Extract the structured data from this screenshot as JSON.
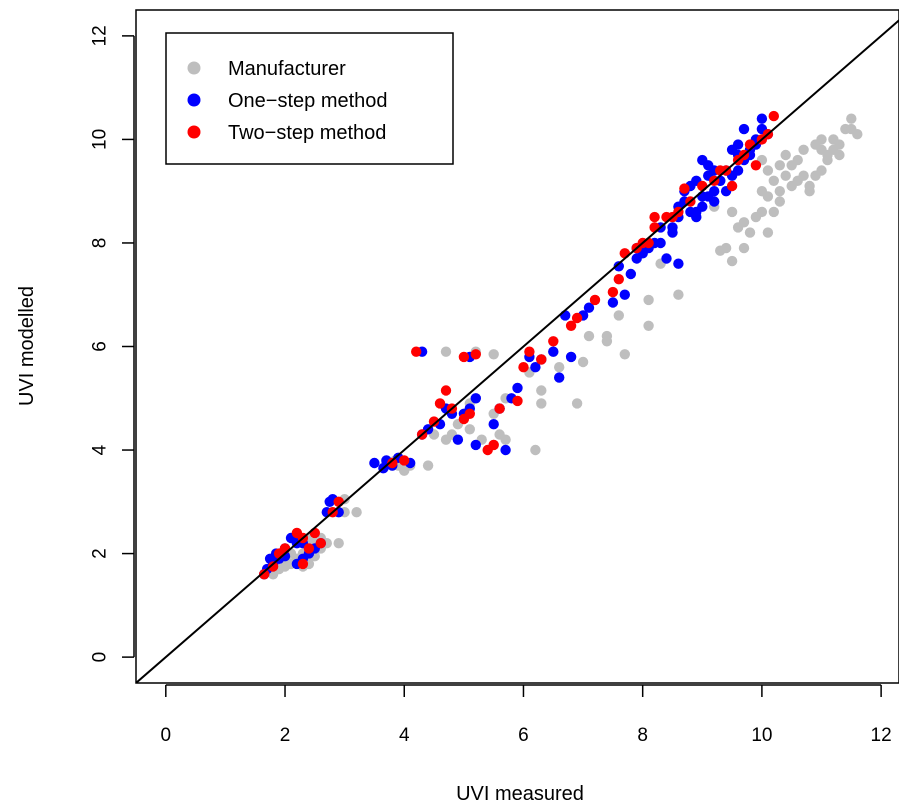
{
  "chart_data": {
    "type": "scatter",
    "xlabel": "UVI measured",
    "ylabel": "UVI modelled",
    "xlim": [
      -0.5,
      12.3
    ],
    "ylim": [
      -0.5,
      12.5
    ],
    "xticks": [
      0,
      2,
      4,
      6,
      8,
      10,
      12
    ],
    "yticks": [
      0,
      2,
      4,
      6,
      8,
      10,
      12
    ],
    "grid": false,
    "legend_position": "top-left",
    "reference_line": "y = x",
    "series": [
      {
        "name": "Manufacturer",
        "color": "#bebebe",
        "points": [
          [
            1.8,
            1.6
          ],
          [
            1.9,
            1.7
          ],
          [
            2.0,
            1.75
          ],
          [
            2.1,
            1.8
          ],
          [
            2.2,
            1.9
          ],
          [
            2.3,
            1.85
          ],
          [
            2.4,
            1.8
          ],
          [
            2.1,
            2.0
          ],
          [
            2.3,
            2.0
          ],
          [
            2.4,
            2.1
          ],
          [
            2.5,
            2.2
          ],
          [
            2.6,
            2.1
          ],
          [
            2.2,
            2.2
          ],
          [
            2.4,
            2.3
          ],
          [
            2.6,
            2.3
          ],
          [
            2.0,
            1.9
          ],
          [
            2.5,
            1.95
          ],
          [
            2.7,
            2.2
          ],
          [
            2.9,
            2.2
          ],
          [
            2.3,
            1.75
          ],
          [
            2.8,
            2.8
          ],
          [
            2.9,
            2.8
          ],
          [
            3.0,
            2.8
          ],
          [
            3.2,
            2.8
          ],
          [
            3.0,
            3.05
          ],
          [
            2.9,
            3.0
          ],
          [
            3.7,
            3.75
          ],
          [
            3.8,
            3.7
          ],
          [
            3.9,
            3.7
          ],
          [
            4.0,
            3.6
          ],
          [
            4.1,
            3.7
          ],
          [
            4.4,
            3.7
          ],
          [
            3.85,
            3.8
          ],
          [
            4.5,
            4.3
          ],
          [
            4.7,
            4.2
          ],
          [
            4.8,
            4.3
          ],
          [
            4.9,
            4.5
          ],
          [
            5.1,
            4.4
          ],
          [
            5.3,
            4.2
          ],
          [
            5.5,
            4.1
          ],
          [
            5.6,
            4.3
          ],
          [
            5.7,
            4.2
          ],
          [
            6.2,
            4.0
          ],
          [
            4.7,
            5.9
          ],
          [
            5.2,
            5.9
          ],
          [
            5.5,
            5.85
          ],
          [
            5.1,
            4.9
          ],
          [
            5.2,
            5.0
          ],
          [
            5.5,
            4.7
          ],
          [
            5.6,
            4.8
          ],
          [
            5.7,
            5.0
          ],
          [
            6.1,
            5.5
          ],
          [
            6.3,
            5.15
          ],
          [
            6.3,
            4.9
          ],
          [
            6.9,
            4.9
          ],
          [
            6.6,
            5.6
          ],
          [
            6.8,
            5.8
          ],
          [
            6.5,
            5.9
          ],
          [
            7.0,
            5.7
          ],
          [
            7.1,
            6.2
          ],
          [
            7.4,
            6.2
          ],
          [
            7.6,
            6.6
          ],
          [
            7.4,
            6.1
          ],
          [
            7.7,
            5.85
          ],
          [
            8.1,
            6.4
          ],
          [
            8.1,
            6.9
          ],
          [
            8.6,
            7.0
          ],
          [
            8.3,
            7.6
          ],
          [
            9.3,
            7.85
          ],
          [
            9.4,
            7.9
          ],
          [
            9.5,
            7.65
          ],
          [
            9.7,
            7.9
          ],
          [
            9.6,
            8.3
          ],
          [
            9.8,
            8.2
          ],
          [
            10.0,
            8.6
          ],
          [
            10.1,
            8.2
          ],
          [
            9.9,
            8.5
          ],
          [
            10.2,
            8.6
          ],
          [
            10.3,
            8.8
          ],
          [
            9.2,
            8.7
          ],
          [
            9.5,
            8.6
          ],
          [
            9.7,
            8.4
          ],
          [
            10.0,
            9.0
          ],
          [
            10.1,
            8.9
          ],
          [
            10.2,
            9.2
          ],
          [
            10.3,
            9.0
          ],
          [
            10.5,
            9.1
          ],
          [
            10.6,
            9.2
          ],
          [
            10.7,
            9.3
          ],
          [
            10.8,
            9.1
          ],
          [
            10.8,
            9.0
          ],
          [
            10.5,
            9.5
          ],
          [
            10.6,
            9.6
          ],
          [
            10.9,
            9.3
          ],
          [
            11.0,
            9.4
          ],
          [
            11.0,
            9.8
          ],
          [
            11.1,
            9.7
          ],
          [
            11.2,
            9.8
          ],
          [
            11.3,
            9.7
          ],
          [
            11.4,
            10.2
          ],
          [
            11.3,
            9.9
          ],
          [
            11.5,
            10.2
          ],
          [
            11.2,
            10.0
          ],
          [
            11.6,
            10.1
          ],
          [
            11.5,
            10.4
          ],
          [
            10.3,
            9.5
          ],
          [
            10.4,
            9.7
          ],
          [
            10.9,
            9.9
          ],
          [
            10.1,
            9.4
          ],
          [
            11.1,
            9.6
          ],
          [
            10.0,
            9.6
          ],
          [
            10.4,
            9.3
          ],
          [
            10.7,
            9.8
          ],
          [
            11.0,
            10.0
          ]
        ]
      },
      {
        "name": "One−step method",
        "color": "#0000ff",
        "points": [
          [
            1.65,
            1.6
          ],
          [
            1.7,
            1.7
          ],
          [
            1.8,
            1.8
          ],
          [
            1.9,
            1.9
          ],
          [
            1.75,
            1.9
          ],
          [
            1.85,
            2.0
          ],
          [
            2.0,
            2.1
          ],
          [
            2.1,
            2.3
          ],
          [
            2.2,
            2.2
          ],
          [
            2.3,
            2.2
          ],
          [
            2.2,
            1.8
          ],
          [
            2.3,
            1.9
          ],
          [
            2.4,
            2.0
          ],
          [
            2.5,
            2.1
          ],
          [
            2.6,
            2.2
          ],
          [
            2.7,
            2.8
          ],
          [
            2.8,
            3.05
          ],
          [
            2.9,
            2.8
          ],
          [
            2.75,
            3.0
          ],
          [
            2.0,
            1.95
          ],
          [
            3.5,
            3.75
          ],
          [
            3.7,
            3.8
          ],
          [
            3.8,
            3.7
          ],
          [
            3.9,
            3.85
          ],
          [
            4.1,
            3.75
          ],
          [
            3.65,
            3.65
          ],
          [
            4.3,
            4.3
          ],
          [
            4.4,
            4.4
          ],
          [
            4.6,
            4.5
          ],
          [
            4.7,
            4.8
          ],
          [
            4.8,
            4.7
          ],
          [
            5.0,
            4.7
          ],
          [
            5.2,
            5.0
          ],
          [
            5.1,
            4.8
          ],
          [
            4.9,
            4.2
          ],
          [
            5.2,
            4.1
          ],
          [
            5.7,
            4.0
          ],
          [
            5.5,
            4.5
          ],
          [
            5.6,
            4.8
          ],
          [
            5.8,
            5.0
          ],
          [
            5.9,
            5.2
          ],
          [
            6.2,
            5.6
          ],
          [
            6.1,
            5.8
          ],
          [
            6.3,
            5.75
          ],
          [
            6.5,
            5.9
          ],
          [
            6.6,
            5.4
          ],
          [
            6.7,
            6.6
          ],
          [
            6.8,
            5.8
          ],
          [
            4.3,
            5.9
          ],
          [
            5.1,
            5.8
          ],
          [
            7.0,
            6.6
          ],
          [
            7.1,
            6.75
          ],
          [
            7.5,
            6.85
          ],
          [
            7.7,
            7.0
          ],
          [
            7.6,
            7.55
          ],
          [
            7.8,
            7.4
          ],
          [
            7.9,
            7.9
          ],
          [
            8.0,
            7.8
          ],
          [
            8.1,
            7.9
          ],
          [
            8.2,
            8.0
          ],
          [
            8.3,
            8.0
          ],
          [
            8.4,
            7.7
          ],
          [
            8.6,
            7.6
          ],
          [
            8.5,
            8.2
          ],
          [
            8.6,
            8.5
          ],
          [
            8.7,
            8.8
          ],
          [
            8.8,
            8.6
          ],
          [
            8.9,
            8.6
          ],
          [
            9.0,
            8.7
          ],
          [
            9.1,
            8.9
          ],
          [
            9.2,
            9.0
          ],
          [
            9.3,
            9.2
          ],
          [
            9.4,
            9.4
          ],
          [
            9.5,
            9.3
          ],
          [
            9.6,
            9.4
          ],
          [
            9.7,
            9.6
          ],
          [
            9.8,
            9.8
          ],
          [
            9.9,
            10.0
          ],
          [
            10.0,
            10.2
          ],
          [
            10.1,
            10.1
          ],
          [
            8.7,
            9.0
          ],
          [
            8.9,
            9.2
          ],
          [
            9.0,
            9.6
          ],
          [
            9.1,
            9.5
          ],
          [
            9.3,
            9.2
          ],
          [
            9.5,
            9.8
          ],
          [
            9.6,
            9.9
          ],
          [
            9.7,
            10.2
          ],
          [
            9.8,
            9.7
          ],
          [
            9.2,
            8.8
          ],
          [
            9.0,
            8.9
          ],
          [
            8.8,
            9.1
          ],
          [
            8.9,
            8.5
          ],
          [
            9.4,
            9.0
          ],
          [
            9.6,
            9.7
          ],
          [
            9.9,
            9.9
          ],
          [
            10.0,
            10.4
          ],
          [
            9.1,
            9.3
          ],
          [
            8.6,
            8.7
          ],
          [
            9.2,
            9.4
          ],
          [
            8.5,
            8.3
          ],
          [
            8.3,
            8.3
          ],
          [
            7.9,
            7.7
          ],
          [
            8.0,
            7.9
          ]
        ]
      },
      {
        "name": "Two−step method",
        "color": "#ff0000",
        "points": [
          [
            1.65,
            1.6
          ],
          [
            1.8,
            1.75
          ],
          [
            1.9,
            2.0
          ],
          [
            2.0,
            2.1
          ],
          [
            2.2,
            2.4
          ],
          [
            2.3,
            2.3
          ],
          [
            2.5,
            2.4
          ],
          [
            2.6,
            2.2
          ],
          [
            2.8,
            2.8
          ],
          [
            2.9,
            3.0
          ],
          [
            2.3,
            1.8
          ],
          [
            2.4,
            2.1
          ],
          [
            3.8,
            3.75
          ],
          [
            4.0,
            3.8
          ],
          [
            4.2,
            5.9
          ],
          [
            4.3,
            4.3
          ],
          [
            4.5,
            4.55
          ],
          [
            4.6,
            4.9
          ],
          [
            4.7,
            5.15
          ],
          [
            4.8,
            4.8
          ],
          [
            5.0,
            4.6
          ],
          [
            5.1,
            4.7
          ],
          [
            5.0,
            5.8
          ],
          [
            5.2,
            5.85
          ],
          [
            5.4,
            4.0
          ],
          [
            5.5,
            4.1
          ],
          [
            5.6,
            4.8
          ],
          [
            5.9,
            4.95
          ],
          [
            6.0,
            5.6
          ],
          [
            6.1,
            5.9
          ],
          [
            6.3,
            5.75
          ],
          [
            6.5,
            6.1
          ],
          [
            6.8,
            6.4
          ],
          [
            6.9,
            6.55
          ],
          [
            7.2,
            6.9
          ],
          [
            7.5,
            7.05
          ],
          [
            7.6,
            7.3
          ],
          [
            7.9,
            7.9
          ],
          [
            8.0,
            8.0
          ],
          [
            8.2,
            8.3
          ],
          [
            8.4,
            8.5
          ],
          [
            8.5,
            8.5
          ],
          [
            8.7,
            9.05
          ],
          [
            8.8,
            8.8
          ],
          [
            9.0,
            9.1
          ],
          [
            9.2,
            9.2
          ],
          [
            9.3,
            9.4
          ],
          [
            9.4,
            9.4
          ],
          [
            9.6,
            9.6
          ],
          [
            9.8,
            9.9
          ],
          [
            10.0,
            10.0
          ],
          [
            10.1,
            10.1
          ],
          [
            10.2,
            10.45
          ],
          [
            9.7,
            9.7
          ],
          [
            9.9,
            9.5
          ],
          [
            8.6,
            8.6
          ],
          [
            8.2,
            8.5
          ],
          [
            8.1,
            8.0
          ],
          [
            7.7,
            7.8
          ],
          [
            9.5,
            9.1
          ]
        ]
      }
    ]
  }
}
